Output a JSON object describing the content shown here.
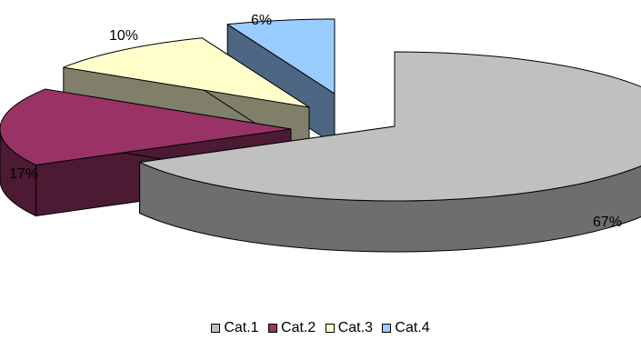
{
  "chart_data": {
    "type": "pie",
    "style": "3d-exploded",
    "categories": [
      "Cat.1",
      "Cat.2",
      "Cat.3",
      "Cat.4"
    ],
    "values": [
      67,
      17,
      10,
      6
    ],
    "labels": [
      "67%",
      "17%",
      "10%",
      "6%"
    ],
    "colors": [
      "#c0c0c0",
      "#993366",
      "#ffffcc",
      "#99ccff"
    ],
    "side_colors": [
      "#6e6e6e",
      "#4d1a33",
      "#80806a",
      "#4d6683"
    ],
    "legend_position": "bottom"
  }
}
